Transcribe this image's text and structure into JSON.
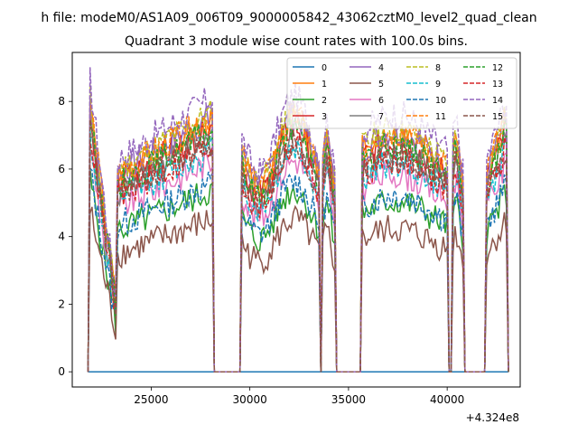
{
  "chart_data": {
    "type": "line",
    "suptitle": "h file: modeM0/AS1A09_006T09_9000005842_43062cztM0_level2_quad_clean",
    "title": "Quadrant 3 module wise count rates with 100.0s bins.",
    "xlabel": "",
    "ylabel": "",
    "x_offset_text": "+4.324e8",
    "xlim": [
      21000,
      43700
    ],
    "ylim": [
      -0.45,
      9.45
    ],
    "x_ticks": [
      25000,
      30000,
      35000,
      40000
    ],
    "x_tick_labels": [
      "25000",
      "30000",
      "35000",
      "40000"
    ],
    "y_ticks": [
      0,
      2,
      4,
      6,
      8
    ],
    "y_tick_labels": [
      "0",
      "2",
      "4",
      "6",
      "8"
    ],
    "legend_position": "top-right",
    "legend_columns": 4,
    "segments": [
      {
        "x_start": 21850,
        "x_end": 23200,
        "shape": "fall"
      },
      {
        "x_start": 23300,
        "x_end": 28150,
        "shape": "rise"
      },
      {
        "x_start": 29550,
        "x_end": 33550,
        "shape": "mixed"
      },
      {
        "x_start": 33700,
        "x_end": 34350,
        "shape": "short"
      },
      {
        "x_start": 35650,
        "x_end": 40000,
        "shape": "flat"
      },
      {
        "x_start": 40250,
        "x_end": 40850,
        "shape": "short"
      },
      {
        "x_start": 42000,
        "x_end": 43050,
        "shape": "rise"
      }
    ],
    "series": [
      {
        "name": "0",
        "color": "#1f77b4",
        "style": "solid",
        "level": 0.0
      },
      {
        "name": "1",
        "color": "#ff7f0e",
        "style": "solid",
        "level": 6.8
      },
      {
        "name": "2",
        "color": "#2ca02c",
        "style": "solid",
        "level": 4.9
      },
      {
        "name": "3",
        "color": "#d62728",
        "style": "solid",
        "level": 6.6
      },
      {
        "name": "4",
        "color": "#9467bd",
        "style": "solid",
        "level": 6.9
      },
      {
        "name": "5",
        "color": "#8c564b",
        "style": "solid",
        "level": 4.1
      },
      {
        "name": "6",
        "color": "#e377c2",
        "style": "solid",
        "level": 5.7
      },
      {
        "name": "7",
        "color": "#7f7f7f",
        "style": "solid",
        "level": 6.3
      },
      {
        "name": "8",
        "color": "#bcbd22",
        "style": "dashed",
        "level": 7.0
      },
      {
        "name": "9",
        "color": "#17becf",
        "style": "dashed",
        "level": 6.0
      },
      {
        "name": "10",
        "color": "#1f77b4",
        "style": "dashed",
        "level": 5.1
      },
      {
        "name": "11",
        "color": "#ff7f0e",
        "style": "dashed",
        "level": 6.9
      },
      {
        "name": "12",
        "color": "#2ca02c",
        "style": "dashed",
        "level": 6.5
      },
      {
        "name": "13",
        "color": "#d62728",
        "style": "dashed",
        "level": 6.1
      },
      {
        "name": "14",
        "color": "#9467bd",
        "style": "dashed",
        "level": 7.4
      },
      {
        "name": "15",
        "color": "#8c564b",
        "style": "dashed",
        "level": 6.2
      }
    ]
  }
}
